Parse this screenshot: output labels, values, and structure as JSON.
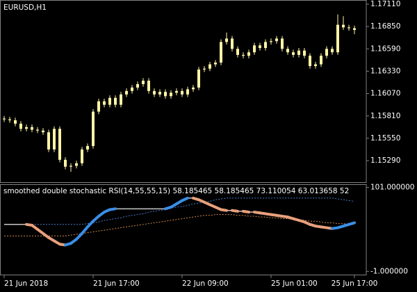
{
  "chart_data": [
    {
      "type": "candlestick",
      "title": "EURUSD,H1",
      "color": "#fff5a5",
      "x": [
        "21 Jun 2018",
        null,
        null,
        null,
        null,
        null,
        null,
        null,
        null,
        null,
        null,
        null,
        null,
        null,
        null,
        null,
        "21 Jun 17:00",
        null,
        null,
        null,
        null,
        null,
        null,
        null,
        null,
        null,
        null,
        null,
        null,
        null,
        null,
        null,
        "22 Jun 09:00",
        null,
        null,
        null,
        null,
        null,
        null,
        null,
        null,
        null,
        null,
        null,
        null,
        null,
        null,
        null,
        "25 Jun 01:00",
        null,
        null,
        null,
        null,
        null,
        null,
        null,
        null,
        null,
        null,
        null,
        null,
        null,
        null,
        "25 Jun 17:00"
      ],
      "open": [
        1.1578,
        1.1577,
        1.1576,
        1.1572,
        1.1566,
        1.1568,
        1.1565,
        1.1564,
        1.1562,
        1.1542,
        1.1566,
        1.153,
        1.1522,
        1.1523,
        1.1526,
        1.1542,
        1.1546,
        1.1586,
        1.1598,
        1.1594,
        1.1602,
        1.1594,
        1.1606,
        1.161,
        1.1614,
        1.1618,
        1.1622,
        1.161,
        1.1606,
        1.1609,
        1.1604,
        1.1608,
        1.161,
        1.1606,
        1.1612,
        1.1614,
        1.1635,
        1.1636,
        1.1641,
        1.1643,
        1.1667,
        1.1671,
        1.1659,
        1.1652,
        1.1651,
        1.1655,
        1.1663,
        1.166,
        1.1667,
        1.1668,
        1.1671,
        1.1659,
        1.1655,
        1.1652,
        1.1657,
        1.1651,
        1.1639,
        1.1641,
        1.1651,
        1.1659,
        1.1655,
        1.1687,
        1.1684,
        1.1683
      ],
      "high": [
        1.1581,
        1.158,
        1.1579,
        1.1575,
        1.1571,
        1.1571,
        1.1568,
        1.1567,
        1.1565,
        1.1569,
        1.1569,
        1.1533,
        1.1526,
        1.1529,
        1.1545,
        1.1549,
        1.1589,
        1.1601,
        1.1601,
        1.1605,
        1.1605,
        1.1609,
        1.1613,
        1.1617,
        1.1621,
        1.1625,
        1.1625,
        1.1613,
        1.1612,
        1.1612,
        1.1611,
        1.1613,
        1.1613,
        1.1615,
        1.1617,
        1.1638,
        1.1639,
        1.1644,
        1.1646,
        1.167,
        1.1678,
        1.1674,
        1.1662,
        1.1655,
        1.1658,
        1.1666,
        1.1666,
        1.167,
        1.1671,
        1.1674,
        1.1674,
        1.1662,
        1.1658,
        1.166,
        1.166,
        1.1654,
        1.1644,
        1.1654,
        1.1662,
        1.1662,
        1.1699,
        1.1697,
        1.1687,
        1.1686
      ],
      "low": [
        1.1574,
        1.1573,
        1.1569,
        1.1563,
        1.1563,
        1.1562,
        1.1561,
        1.1559,
        1.1539,
        1.1539,
        1.1527,
        1.1519,
        1.1516,
        1.152,
        1.1523,
        1.1539,
        1.1543,
        1.1583,
        1.1591,
        1.1591,
        1.1591,
        1.1591,
        1.1603,
        1.1607,
        1.1611,
        1.1615,
        1.1607,
        1.1603,
        1.1603,
        1.1601,
        1.1601,
        1.1605,
        1.1603,
        1.1603,
        1.1609,
        1.1611,
        1.1632,
        1.1633,
        1.1638,
        1.164,
        1.1664,
        1.1656,
        1.1649,
        1.1648,
        1.1648,
        1.1652,
        1.1657,
        1.1657,
        1.1664,
        1.1665,
        1.1656,
        1.1652,
        1.1649,
        1.1649,
        1.1648,
        1.1636,
        1.1636,
        1.1638,
        1.1648,
        1.1652,
        1.1652,
        1.1681,
        1.168,
        1.1676
      ],
      "close": [
        1.1577,
        1.1576,
        1.1572,
        1.1566,
        1.1568,
        1.1565,
        1.1564,
        1.1562,
        1.1542,
        1.1566,
        1.153,
        1.1522,
        1.1523,
        1.1526,
        1.1542,
        1.1546,
        1.1586,
        1.1598,
        1.1594,
        1.1602,
        1.1594,
        1.1606,
        1.161,
        1.1614,
        1.1618,
        1.1622,
        1.161,
        1.1606,
        1.1609,
        1.1604,
        1.1608,
        1.161,
        1.1606,
        1.1612,
        1.1614,
        1.1635,
        1.1636,
        1.1641,
        1.1643,
        1.1667,
        1.1671,
        1.1659,
        1.1652,
        1.1651,
        1.1655,
        1.1663,
        1.166,
        1.1667,
        1.1668,
        1.1671,
        1.1659,
        1.1655,
        1.1652,
        1.1657,
        1.1651,
        1.1639,
        1.1641,
        1.1651,
        1.1659,
        1.1655,
        1.1687,
        1.1684,
        1.1683,
        1.1681
      ],
      "ylim": [
        1.1504,
        1.1715
      ],
      "yticks": [
        {
          "value": 1.1711,
          "label": "1.17110"
        },
        {
          "value": 1.1685,
          "label": "1.16850"
        },
        {
          "value": 1.1659,
          "label": "1.16590"
        },
        {
          "value": 1.1633,
          "label": "1.16330"
        },
        {
          "value": 1.1607,
          "label": "1.16070"
        },
        {
          "value": 1.1581,
          "label": "1.15810"
        },
        {
          "value": 1.1555,
          "label": "1.15550"
        },
        {
          "value": 1.1529,
          "label": "1.15290"
        }
      ]
    },
    {
      "type": "line",
      "title": "smoothed double stochastic RSI(14,55,55,15) 58.185465 58.185465 73.110054 63.013658 52",
      "rising_color": "#3a8ee6",
      "falling_color": "#e8a07c",
      "series": [
        {
          "color": "#c8c8c8",
          "dash": false,
          "values": [
            56,
            56,
            56,
            56,
            56,
            55,
            50,
            45,
            40,
            36,
            32,
            31,
            33,
            38,
            45,
            53,
            60,
            66,
            71,
            74,
            75,
            75,
            75,
            75,
            75,
            75,
            75,
            75,
            75,
            75,
            77,
            81,
            85,
            88,
            88,
            86,
            83,
            80,
            77,
            74,
            73,
            73,
            72,
            72,
            71,
            71,
            70,
            69,
            68,
            67,
            66,
            65,
            63,
            61,
            59,
            56,
            54,
            53,
            52,
            51,
            52,
            54,
            56,
            58
          ]
        },
        {
          "color": "#4a7fd0",
          "dash": true,
          "values": [
            56,
            56,
            56,
            56,
            56,
            56,
            56,
            56,
            56,
            56,
            56,
            56,
            56,
            56,
            56,
            57,
            58,
            59,
            61,
            62,
            63,
            64,
            66,
            67,
            68,
            69,
            71,
            72,
            73,
            74,
            76,
            77,
            78,
            79,
            81,
            82,
            83,
            84,
            86,
            87,
            88,
            88,
            88,
            88,
            88,
            88,
            88,
            88,
            88,
            88,
            88,
            88,
            88,
            88,
            88,
            88,
            88,
            88,
            88,
            88,
            87,
            86,
            85,
            84
          ]
        },
        {
          "color": "#d08a50",
          "dash": true,
          "values": [
            42,
            42,
            42,
            42,
            42,
            42,
            42,
            42,
            42,
            42,
            42,
            42,
            43,
            44,
            45,
            46,
            47,
            48,
            49,
            50,
            51,
            52,
            53,
            54,
            55,
            56,
            57,
            58,
            59,
            60,
            61,
            62,
            63,
            64,
            65,
            66,
            67,
            67,
            68,
            68,
            68,
            68,
            67,
            67,
            66,
            66,
            65,
            65,
            64,
            64,
            63,
            63,
            62,
            62,
            61,
            60,
            60,
            59,
            58,
            58,
            57,
            57,
            56,
            56
          ]
        }
      ],
      "ylim": [
        -5,
        104
      ],
      "yticks": [
        {
          "value": 101,
          "label": "101.000000"
        },
        {
          "value": -1,
          "label": "-1.000000"
        }
      ]
    }
  ]
}
